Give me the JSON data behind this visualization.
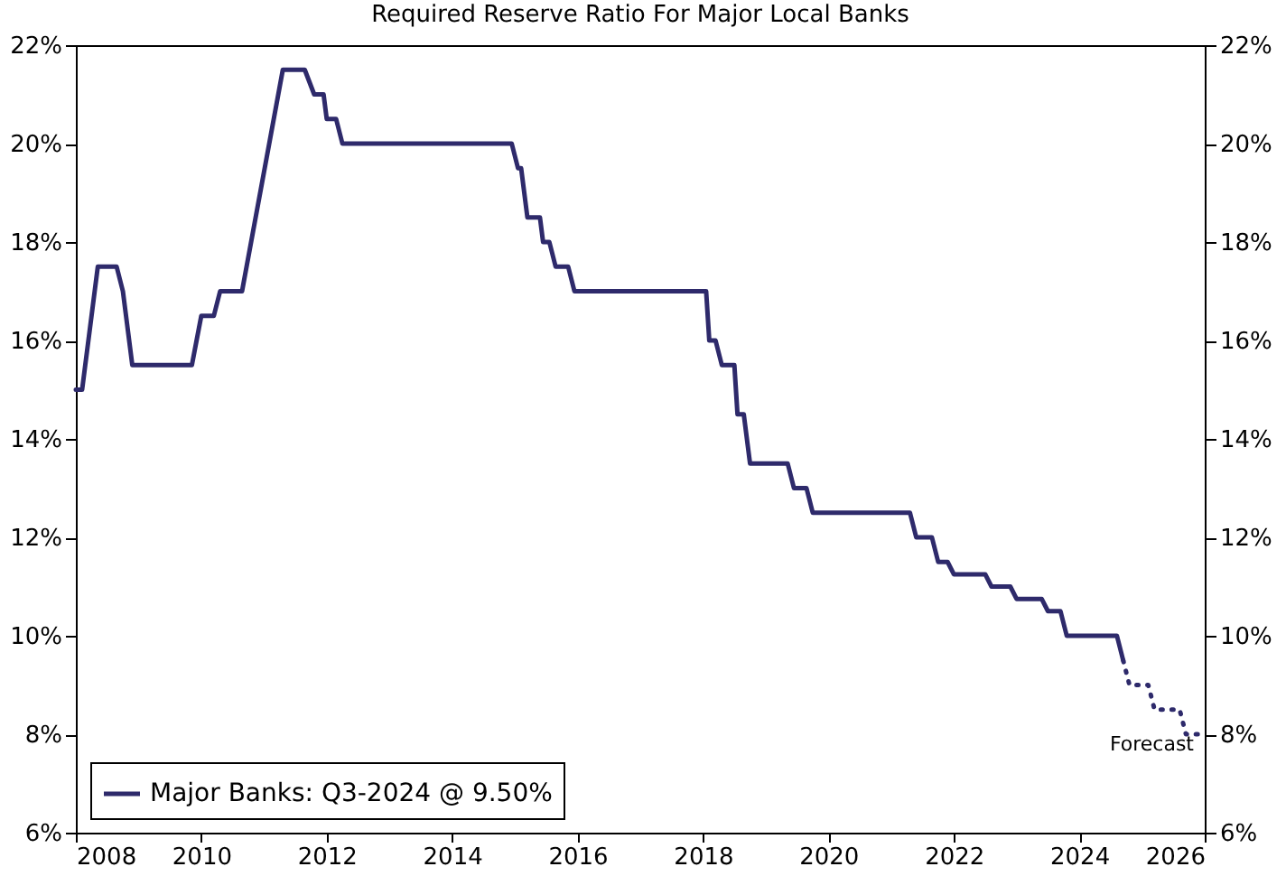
{
  "chart_data": {
    "type": "line",
    "title": "Required Reserve Ratio For Major Local Banks",
    "xlim": [
      2008,
      2026
    ],
    "xticks": [
      2008,
      2010,
      2012,
      2014,
      2016,
      2018,
      2020,
      2022,
      2024,
      2026
    ],
    "ylim": [
      6,
      22
    ],
    "yticks": [
      {
        "value": 6,
        "label": "6%"
      },
      {
        "value": 8,
        "label": "8%"
      },
      {
        "value": 10,
        "label": "10%"
      },
      {
        "value": 12,
        "label": "12%"
      },
      {
        "value": 14,
        "label": "14%"
      },
      {
        "value": 16,
        "label": "16%"
      },
      {
        "value": 18,
        "label": "18%"
      },
      {
        "value": 20,
        "label": "20%"
      },
      {
        "value": 22,
        "label": "22%"
      }
    ],
    "y2lim": [
      6,
      22
    ],
    "y2ticks": [
      {
        "value": 6,
        "label": "6%"
      },
      {
        "value": 8,
        "label": "8%"
      },
      {
        "value": 10,
        "label": "10%"
      },
      {
        "value": 12,
        "label": "12%"
      },
      {
        "value": 14,
        "label": "14%"
      },
      {
        "value": 16,
        "label": "16%"
      },
      {
        "value": 18,
        "label": "18%"
      },
      {
        "value": 20,
        "label": "20%"
      },
      {
        "value": 22,
        "label": "22%"
      }
    ],
    "grid": false,
    "legend": "bottom left",
    "series": [
      {
        "name": "Major Banks: Q3-2024 @ 9.50%",
        "color": "#2e2a6b",
        "line_style": "solid",
        "x": [
          2008.0,
          2008.1,
          2008.35,
          2008.65,
          2008.75,
          2008.9,
          2009.85,
          2010.0,
          2010.2,
          2010.3,
          2010.65,
          2011.3,
          2011.65,
          2011.8,
          2011.95,
          2012.0,
          2012.15,
          2012.25,
          2014.95,
          2015.05,
          2015.1,
          2015.2,
          2015.4,
          2015.45,
          2015.55,
          2015.65,
          2015.85,
          2015.95,
          2018.05,
          2018.1,
          2018.2,
          2018.3,
          2018.5,
          2018.55,
          2018.65,
          2018.75,
          2019.35,
          2019.45,
          2019.65,
          2019.75,
          2021.3,
          2021.4,
          2021.65,
          2021.75,
          2021.9,
          2022.0,
          2022.5,
          2022.6,
          2022.9,
          2023.0,
          2023.4,
          2023.5,
          2023.7,
          2023.8,
          2024.3,
          2024.6,
          2024.7
        ],
        "values": [
          15,
          15,
          17.5,
          17.5,
          17,
          15.5,
          15.5,
          16.5,
          16.5,
          17,
          17,
          21.5,
          21.5,
          21,
          21,
          20.5,
          20.5,
          20,
          20,
          19.5,
          19.5,
          18.5,
          18.5,
          18,
          18,
          17.5,
          17.5,
          17,
          17,
          16,
          16,
          15.5,
          15.5,
          14.5,
          14.5,
          13.5,
          13.5,
          13,
          13,
          12.5,
          12.5,
          12,
          12,
          11.5,
          11.5,
          11.25,
          11.25,
          11,
          11,
          10.75,
          10.75,
          10.5,
          10.5,
          10,
          10,
          10,
          9.5
        ]
      },
      {
        "color": "#2e2a6b",
        "line_style": "dotted",
        "x": [
          2024.7,
          2024.8,
          2025.1,
          2025.2,
          2025.6,
          2025.7,
          2026.0
        ],
        "values": [
          9.5,
          9,
          9,
          8.5,
          8.5,
          8,
          8
        ]
      }
    ],
    "annotations": [
      "Forecast"
    ]
  }
}
